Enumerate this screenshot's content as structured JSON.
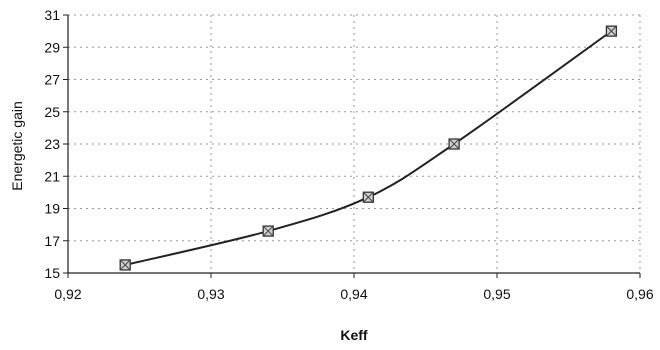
{
  "chart_data": {
    "type": "line",
    "title": "",
    "xlabel": "Keff",
    "ylabel": "Energetic gain",
    "xlim": [
      0.92,
      0.96
    ],
    "ylim": [
      15,
      31
    ],
    "x_ticks": [
      0.92,
      0.93,
      0.94,
      0.95,
      0.96
    ],
    "x_tick_labels": [
      "0,92",
      "0,93",
      "0,94",
      "0,95",
      "0,96"
    ],
    "y_ticks": [
      15,
      17,
      19,
      21,
      23,
      25,
      27,
      29,
      31
    ],
    "y_tick_labels": [
      "15",
      "17",
      "19",
      "21",
      "23",
      "25",
      "27",
      "29",
      "31"
    ],
    "grid": true,
    "legend": "none",
    "series": [
      {
        "x": [
          0.924,
          0.934,
          0.941,
          0.947,
          0.958
        ],
        "y": [
          15.5,
          17.6,
          19.7,
          23.0,
          30.0
        ],
        "color": "#222222",
        "marker": "square"
      }
    ]
  }
}
